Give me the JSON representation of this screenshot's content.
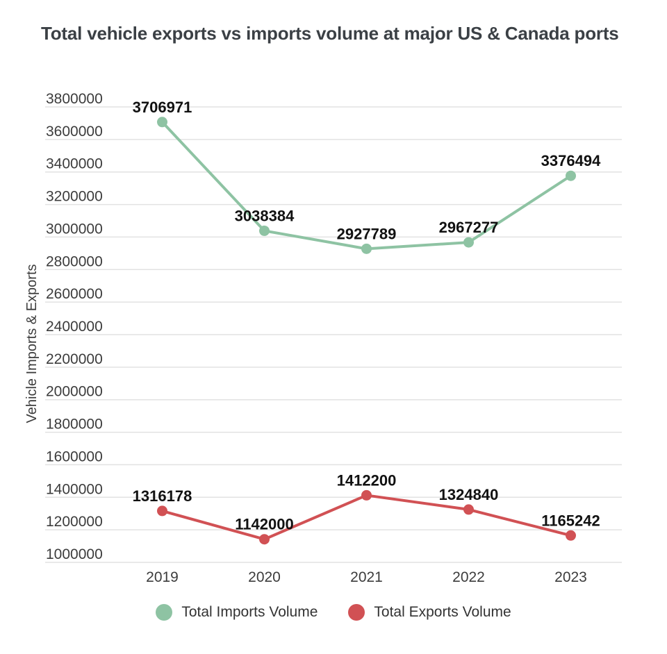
{
  "colors": {
    "background": "#ffffff",
    "grid": "#e2e2e2",
    "axis_text": "#3c3c3c",
    "data_label": "#111111",
    "title_text": "#3b4045"
  },
  "chart_data": {
    "type": "line",
    "title": "Total vehicle exports vs imports volume at major US & Canada ports",
    "ylabel": "Vehicle Imports & Exports",
    "xlabel": "",
    "categories": [
      "2019",
      "2020",
      "2021",
      "2022",
      "2023"
    ],
    "series": [
      {
        "name": "Total Imports Volume",
        "color": "#8ec3a3",
        "values": [
          3706971,
          3038384,
          2927789,
          2967277,
          3376494
        ]
      },
      {
        "name": "Total Exports Volume",
        "color": "#d15154",
        "values": [
          1316178,
          1142000,
          1412200,
          1324840,
          1165242
        ]
      }
    ],
    "ylim": [
      1000000,
      3800000
    ],
    "ytick_step": 200000,
    "grid": true,
    "data_labels": true,
    "legend_position": "bottom"
  }
}
